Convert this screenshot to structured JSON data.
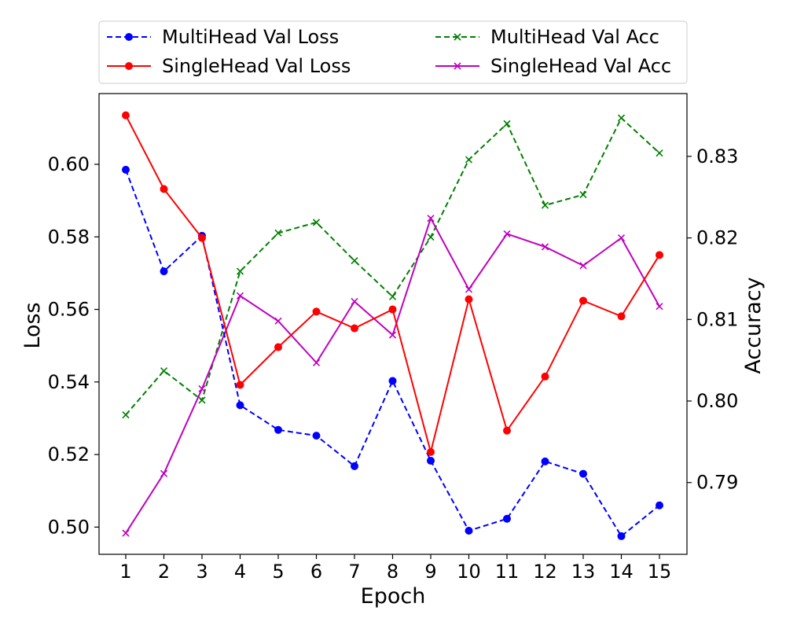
{
  "chart_data": {
    "type": "line",
    "title": "",
    "xlabel": "Epoch",
    "ylabel": "Loss",
    "y2label": "Accuracy",
    "x": [
      1,
      2,
      3,
      4,
      5,
      6,
      7,
      8,
      9,
      10,
      11,
      12,
      13,
      14,
      15
    ],
    "x_tick_labels": [
      "1",
      "2",
      "3",
      "4",
      "5",
      "6",
      "7",
      "8",
      "9",
      "10",
      "11",
      "12",
      "13",
      "14",
      "15"
    ],
    "ylim": [
      0.4925,
      0.6195
    ],
    "y_ticks": [
      0.5,
      0.52,
      0.54,
      0.56,
      0.58,
      0.6
    ],
    "y_tick_labels": [
      "0.50",
      "0.52",
      "0.54",
      "0.56",
      "0.58",
      "0.60"
    ],
    "y2lim": [
      0.7812,
      0.8377
    ],
    "y2_ticks": [
      0.79,
      0.8,
      0.81,
      0.82,
      0.83
    ],
    "y2_tick_labels": [
      "0.79",
      "0.80",
      "0.81",
      "0.82",
      "0.83"
    ],
    "grid": false,
    "legend_position": "top, above plot, 2 columns",
    "series": [
      {
        "name": "MultiHead Val Loss",
        "axis": "left",
        "color": "#0000ff",
        "line_style": "dashed",
        "marker": "circle",
        "values": [
          0.5985,
          0.5705,
          0.5803,
          0.5336,
          0.5268,
          0.5252,
          0.5168,
          0.5403,
          0.5183,
          0.499,
          0.5023,
          0.5181,
          0.5147,
          0.4975,
          0.506
        ]
      },
      {
        "name": "SingleHead Val Loss",
        "axis": "left",
        "color": "#ff0000",
        "line_style": "solid",
        "marker": "circle",
        "values": [
          0.6135,
          0.5932,
          0.5797,
          0.5392,
          0.5496,
          0.5594,
          0.5548,
          0.56,
          0.5207,
          0.5628,
          0.5266,
          0.5415,
          0.5624,
          0.5581,
          0.575
        ]
      },
      {
        "name": "MultiHead Val Acc",
        "axis": "right",
        "color": "#008000",
        "line_style": "dashed",
        "marker": "x",
        "values": [
          0.7983,
          0.8037,
          0.8001,
          0.8159,
          0.8206,
          0.8219,
          0.8172,
          0.8128,
          0.8201,
          0.8296,
          0.834,
          0.824,
          0.8253,
          0.8347,
          0.8304
        ]
      },
      {
        "name": "SingleHead Val Acc",
        "axis": "right",
        "color": "#bf00bf",
        "line_style": "solid",
        "marker": "x",
        "values": [
          0.7838,
          0.7911,
          0.8015,
          0.8129,
          0.8098,
          0.8047,
          0.8122,
          0.8081,
          0.8224,
          0.8137,
          0.8205,
          0.8189,
          0.8166,
          0.82,
          0.8116
        ]
      }
    ]
  }
}
